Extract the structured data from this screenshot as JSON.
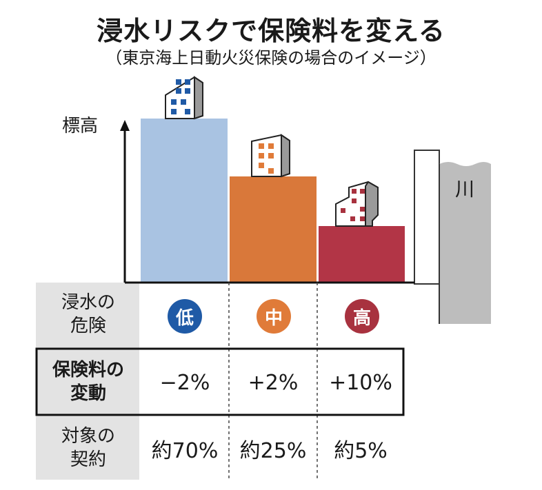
{
  "title": "浸水リスクで保険料を変える",
  "subtitle": "（東京海上日動火災保険の場合のイメージ）",
  "axis_label": "標高",
  "river_label": "川",
  "colors": {
    "bar_low": "#a9c3e2",
    "bar_mid": "#d9783a",
    "bar_high": "#b23546",
    "badge_low": "#1f5aa6",
    "badge_mid": "#e07b39",
    "badge_high": "#a8323f",
    "river_wall": "#bdbdbd",
    "row_shade": "#e3e3e3"
  },
  "rows": {
    "risk": {
      "label_line1": "浸水の",
      "label_line2": "危険"
    },
    "premium": {
      "label_line1": "保険料の",
      "label_line2": "変動"
    },
    "contracts": {
      "label_line1": "対象の",
      "label_line2": "契約"
    }
  },
  "columns": [
    {
      "risk": "低",
      "premium": "−2%",
      "contracts": "約70%"
    },
    {
      "risk": "中",
      "premium": "+2%",
      "contracts": "約25%"
    },
    {
      "risk": "高",
      "premium": "+10%",
      "contracts": "約5%"
    }
  ]
}
